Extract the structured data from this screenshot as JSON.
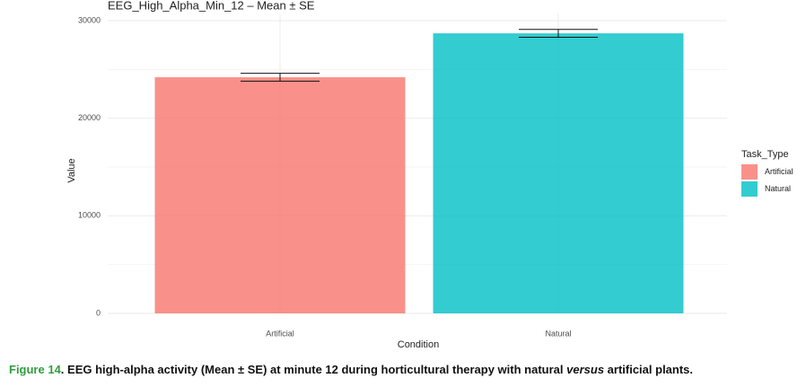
{
  "chart_data": {
    "type": "bar",
    "title": "EEG_High_Alpha_Min_12 – Mean ± SE",
    "x_label": "Condition",
    "y_label": "Value",
    "categories": [
      "Artificial",
      "Natural"
    ],
    "values": [
      24200,
      28700
    ],
    "errors": [
      400,
      400
    ],
    "colors": [
      "#F8766D",
      "#00BFC4"
    ],
    "ylim": [
      0,
      30700
    ],
    "yticks": [
      0,
      10000,
      20000,
      30000
    ],
    "grid": true,
    "legend": {
      "title": "Task_Type",
      "position": "right"
    }
  },
  "caption": {
    "label": "Figure 14",
    "text": ". EEG high-alpha activity (Mean ± SE) at minute 12 during horticultural therapy with natural ",
    "emphasis": "versus",
    "end": " artificial plants."
  }
}
